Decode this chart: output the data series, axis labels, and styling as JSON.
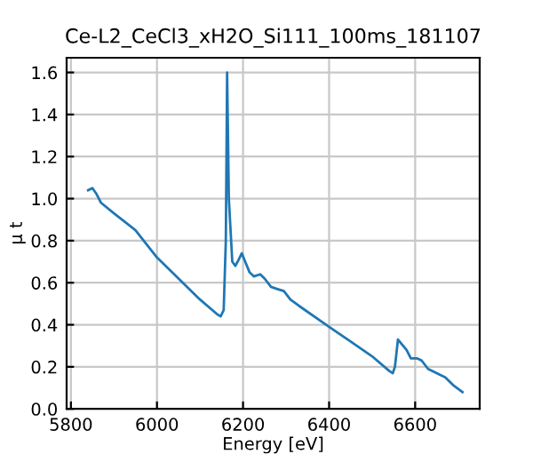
{
  "chart_data": {
    "type": "line",
    "title": "Ce-L2_CeCl3_xH2O_Si111_100ms_181107",
    "xlabel": "Energy [eV]",
    "ylabel": "μ t",
    "series": [
      {
        "color": "#1f77b4",
        "x": [
          5840,
          5850,
          5860,
          5870,
          5900,
          5950,
          6000,
          6050,
          6100,
          6140,
          6148,
          6155,
          6160,
          6163,
          6167,
          6175,
          6182,
          6190,
          6197,
          6205,
          6215,
          6225,
          6240,
          6250,
          6265,
          6280,
          6295,
          6310,
          6330,
          6400,
          6450,
          6500,
          6540,
          6548,
          6553,
          6560,
          6568,
          6580,
          6590,
          6605,
          6615,
          6630,
          6650,
          6670,
          6690,
          6710
        ],
        "values": [
          1.04,
          1.05,
          1.02,
          0.98,
          0.93,
          0.85,
          0.72,
          0.62,
          0.52,
          0.45,
          0.44,
          0.47,
          0.8,
          1.6,
          1.0,
          0.7,
          0.68,
          0.71,
          0.74,
          0.7,
          0.65,
          0.63,
          0.64,
          0.62,
          0.58,
          0.57,
          0.56,
          0.52,
          0.49,
          0.39,
          0.32,
          0.25,
          0.18,
          0.17,
          0.2,
          0.33,
          0.31,
          0.28,
          0.24,
          0.24,
          0.23,
          0.19,
          0.17,
          0.15,
          0.11,
          0.08
        ]
      }
    ],
    "xlim": [
      5790,
      6750
    ],
    "xticks": [
      5800,
      6000,
      6200,
      6400,
      6600
    ],
    "ylim": [
      0,
      1.67
    ],
    "yticks": [
      {
        "value": 0,
        "label": "0.0"
      },
      0.2,
      0.4,
      0.6,
      0.8,
      {
        "value": 1,
        "label": "1.0"
      },
      1.2,
      1.4,
      1.6
    ],
    "grid": true,
    "marker": "none",
    "line_style": "solid"
  }
}
